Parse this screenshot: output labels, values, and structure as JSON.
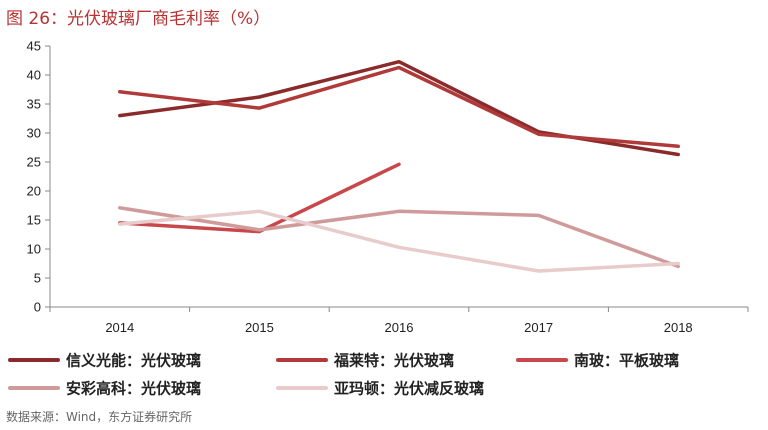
{
  "title": "图 26：光伏玻璃厂商毛利率（%）",
  "source": "数据来源：Wind，东方证券研究所",
  "chart_data": {
    "type": "line",
    "title": "图 26：光伏玻璃厂商毛利率（%）",
    "xlabel": "",
    "ylabel": "",
    "categories": [
      "2014",
      "2015",
      "2016",
      "2017",
      "2018"
    ],
    "ylim": [
      0,
      45
    ],
    "yticks": [
      0,
      5,
      10,
      15,
      20,
      25,
      30,
      35,
      40,
      45
    ],
    "grid": false,
    "legend_position": "bottom",
    "series": [
      {
        "name": "信义光能：光伏玻璃",
        "color": "#8b2a2a",
        "values": [
          33.0,
          36.2,
          42.3,
          30.2,
          26.3
        ]
      },
      {
        "name": "福莱特：光伏玻璃",
        "color": "#b03a3a",
        "values": [
          37.1,
          34.3,
          41.3,
          29.8,
          27.7
        ]
      },
      {
        "name": "南玻：平板玻璃",
        "color": "#c8474a",
        "values": [
          14.5,
          13.0,
          24.6,
          null,
          null
        ]
      },
      {
        "name": "安彩高科：光伏玻璃",
        "color": "#d09a9a",
        "values": [
          17.1,
          13.3,
          16.5,
          15.8,
          7.0
        ]
      },
      {
        "name": "亚玛顿：光伏减反玻璃",
        "color": "#e8cbcb",
        "values": [
          14.3,
          16.5,
          10.3,
          6.2,
          7.5
        ]
      }
    ]
  }
}
